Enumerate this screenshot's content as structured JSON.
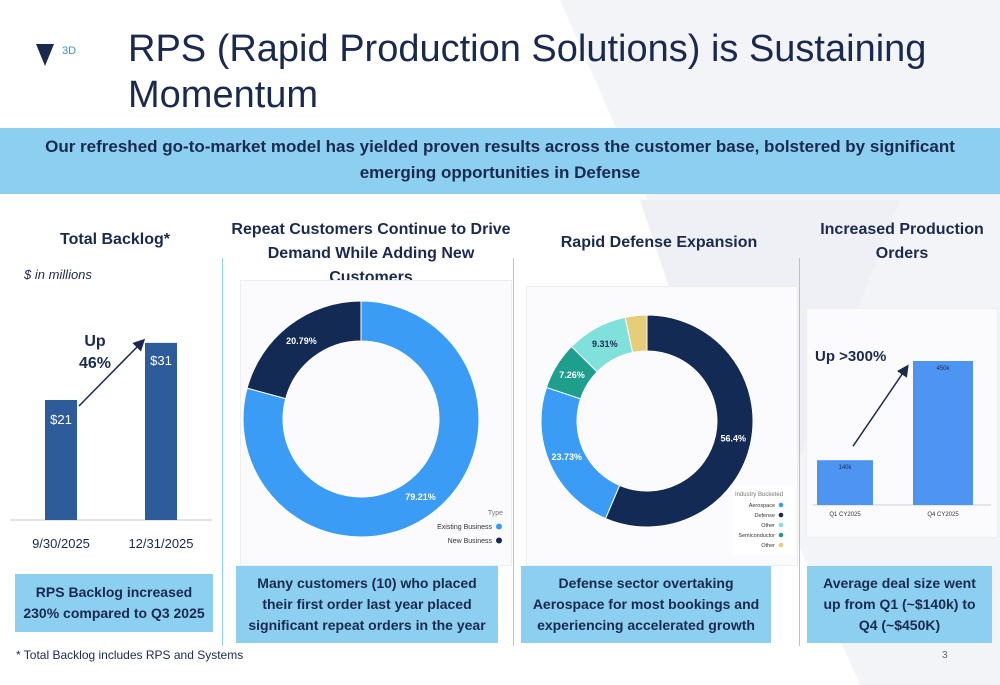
{
  "slide": {
    "title": "RPS (Rapid Production Solutions) is Sustaining Momentum",
    "banner": "Our refreshed go-to-market model has yielded proven results across the customer base, bolstered by significant emerging opportunities in Defense",
    "logo_text": "3D",
    "page_number": "3",
    "footnote": "* Total Backlog includes RPS and Systems",
    "colors": {
      "navy": "#1a2a4f",
      "banner": "#8ccff0",
      "bar_dark": "#2e5c9a",
      "bar_light": "#4d95f0"
    }
  },
  "sections": {
    "backlog": {
      "heading": "Total Backlog*",
      "unit_note": "$ in millions",
      "growth_label": "Up\n46%",
      "summary": "RPS Backlog increased 230% compared to Q3 2025"
    },
    "customers": {
      "heading": "Repeat Customers Continue to Drive Demand While Adding New Customers",
      "legend_title": "Type",
      "summary": "Many customers (10) who placed their first order last year placed significant repeat orders in the year"
    },
    "defense": {
      "heading": "Rapid Defense Expansion",
      "legend_title": "Industry Bucketed",
      "summary": "Defense sector overtaking Aerospace for most bookings and experiencing accelerated growth"
    },
    "orders": {
      "heading": "Increased Production Orders",
      "growth_label": "Up >300%",
      "summary": "Average deal size went up from Q1 (~$140k) to Q4 (~$450K)"
    }
  },
  "chart_data": [
    {
      "id": "backlog",
      "type": "bar",
      "title": "Total Backlog*",
      "ylabel": "$ in millions",
      "categories": [
        "9/30/2025",
        "12/31/2025"
      ],
      "values": [
        21,
        31
      ],
      "labels": [
        "$21",
        "$31"
      ],
      "ylim": [
        0,
        35
      ]
    },
    {
      "id": "customers",
      "type": "pie",
      "title": "Repeat Customers",
      "slices": [
        {
          "name": "Existing Business",
          "value": 79.21,
          "label": "79.21%",
          "color": "#3b9cf5"
        },
        {
          "name": "New Business",
          "value": 20.79,
          "label": "20.79%",
          "color": "#132a55"
        }
      ]
    },
    {
      "id": "defense",
      "type": "pie",
      "title": "Rapid Defense Expansion",
      "slices": [
        {
          "name": "Defense",
          "value": 56.4,
          "label": "56.4%",
          "color": "#132a55"
        },
        {
          "name": "Aerospace",
          "value": 23.73,
          "label": "23.73%",
          "color": "#3b9cf5"
        },
        {
          "name": "Semiconductor",
          "value": 7.26,
          "label": "7.26%",
          "color": "#1e9e8c"
        },
        {
          "name": "Other",
          "value": 9.31,
          "label": "9.31%",
          "color": "#7fe0dc"
        },
        {
          "name": "Other",
          "value": 3.3,
          "label": "",
          "color": "#e6cd7a"
        }
      ],
      "legend": [
        {
          "name": "Aerospace",
          "color": "#3b9cf5"
        },
        {
          "name": "Defense",
          "color": "#132a55"
        },
        {
          "name": "Other",
          "color": "#7fe0dc"
        },
        {
          "name": "Semiconductor",
          "color": "#1e9e8c"
        },
        {
          "name": "Other",
          "color": "#e6cd7a"
        }
      ]
    },
    {
      "id": "orders",
      "type": "bar",
      "title": "Increased Production Orders",
      "categories": [
        "Q1 CY2025",
        "Q4 CY2025"
      ],
      "values": [
        140,
        450
      ],
      "labels": [
        "140k",
        "450k"
      ],
      "ylim": [
        0,
        500
      ]
    }
  ]
}
